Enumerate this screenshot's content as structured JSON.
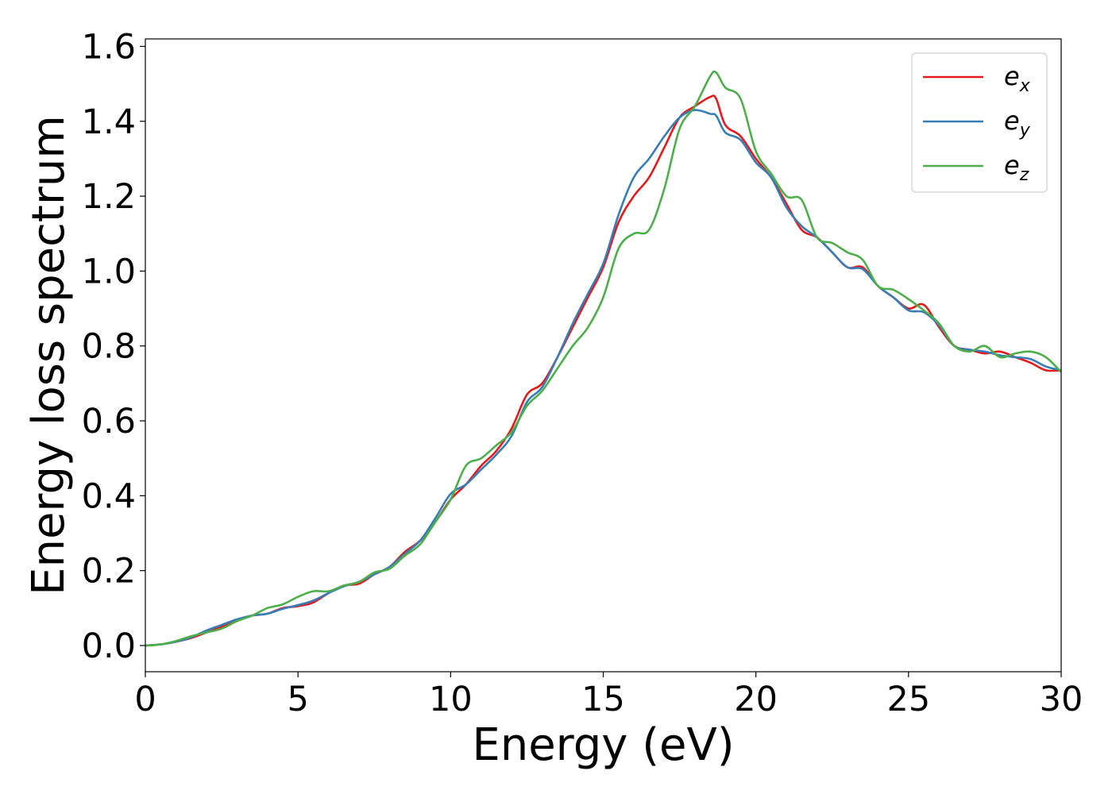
{
  "chart_data": {
    "type": "line",
    "title": "",
    "xlabel": "Energy (eV)",
    "ylabel": "Energy loss spectrum",
    "xlim": [
      0,
      30
    ],
    "ylim": [
      -0.07,
      1.62
    ],
    "xticks": [
      0,
      5,
      10,
      15,
      20,
      25,
      30
    ],
    "xtick_labels": [
      "0",
      "5",
      "10",
      "15",
      "20",
      "25",
      "30"
    ],
    "yticks": [
      0.0,
      0.2,
      0.4,
      0.6,
      0.8,
      1.0,
      1.2,
      1.4,
      1.6
    ],
    "ytick_labels": [
      "0.0",
      "0.2",
      "0.4",
      "0.6",
      "0.8",
      "1.0",
      "1.2",
      "1.4",
      "1.6"
    ],
    "grid": false,
    "legend_position": "top-right",
    "series": [
      {
        "name": "e",
        "sub": "x",
        "color": "#e41a1c",
        "x": [
          0,
          0.5,
          1,
          1.5,
          2,
          2.5,
          3,
          3.5,
          4,
          4.5,
          5,
          5.5,
          6,
          6.5,
          7,
          7.5,
          8,
          8.5,
          9,
          9.5,
          10,
          10.5,
          11,
          11.5,
          12,
          12.5,
          13,
          13.5,
          14,
          14.5,
          15,
          15.5,
          16,
          16.5,
          17,
          17.5,
          18,
          18.5,
          18.7,
          19,
          19.5,
          20,
          20.5,
          21,
          21.5,
          22,
          22.5,
          23,
          23.5,
          24,
          24.5,
          25,
          25.5,
          26,
          26.5,
          27,
          27.5,
          28,
          28.5,
          29,
          29.5,
          30
        ],
        "y": [
          0.0,
          0.003,
          0.01,
          0.02,
          0.035,
          0.05,
          0.068,
          0.08,
          0.085,
          0.1,
          0.105,
          0.115,
          0.14,
          0.16,
          0.165,
          0.19,
          0.21,
          0.25,
          0.28,
          0.33,
          0.39,
          0.43,
          0.48,
          0.52,
          0.58,
          0.67,
          0.7,
          0.77,
          0.85,
          0.93,
          1.01,
          1.13,
          1.2,
          1.25,
          1.33,
          1.41,
          1.44,
          1.465,
          1.46,
          1.39,
          1.36,
          1.3,
          1.25,
          1.18,
          1.11,
          1.09,
          1.05,
          1.01,
          1.01,
          0.96,
          0.93,
          0.9,
          0.91,
          0.85,
          0.8,
          0.79,
          0.78,
          0.785,
          0.77,
          0.755,
          0.735,
          0.735
        ]
      },
      {
        "name": "e",
        "sub": "y",
        "color": "#377eb8",
        "x": [
          0,
          0.5,
          1,
          1.5,
          2,
          2.5,
          3,
          3.5,
          4,
          4.5,
          5,
          5.5,
          6,
          6.5,
          7,
          7.5,
          8,
          8.5,
          9,
          9.5,
          10,
          10.5,
          11,
          11.5,
          12,
          12.5,
          13,
          13.5,
          14,
          14.5,
          15,
          15.5,
          16,
          16.5,
          17,
          17.5,
          18,
          18.5,
          18.7,
          19,
          19.5,
          20,
          20.5,
          21,
          21.5,
          22,
          22.5,
          23,
          23.5,
          24,
          24.5,
          25,
          25.5,
          26,
          26.5,
          27,
          27.5,
          28,
          28.5,
          29,
          29.5,
          30
        ],
        "y": [
          0.0,
          0.003,
          0.01,
          0.022,
          0.04,
          0.055,
          0.07,
          0.08,
          0.085,
          0.098,
          0.108,
          0.12,
          0.14,
          0.158,
          0.17,
          0.19,
          0.21,
          0.245,
          0.28,
          0.34,
          0.405,
          0.43,
          0.47,
          0.51,
          0.56,
          0.65,
          0.69,
          0.77,
          0.86,
          0.94,
          1.02,
          1.15,
          1.25,
          1.3,
          1.36,
          1.41,
          1.43,
          1.42,
          1.415,
          1.37,
          1.35,
          1.29,
          1.25,
          1.17,
          1.12,
          1.09,
          1.05,
          1.01,
          1.005,
          0.96,
          0.93,
          0.895,
          0.89,
          0.855,
          0.8,
          0.79,
          0.785,
          0.775,
          0.77,
          0.765,
          0.745,
          0.735
        ]
      },
      {
        "name": "e",
        "sub": "z",
        "color": "#4daf4a",
        "x": [
          0,
          0.5,
          1,
          1.5,
          2,
          2.5,
          3,
          3.5,
          4,
          4.5,
          5,
          5.5,
          6,
          6.5,
          7,
          7.5,
          8,
          8.5,
          9,
          9.5,
          10,
          10.5,
          11,
          11.5,
          12,
          12.5,
          13,
          13.5,
          14,
          14.5,
          15,
          15.5,
          16,
          16.5,
          17,
          17.5,
          18,
          18.5,
          18.7,
          19,
          19.5,
          20,
          20.5,
          21,
          21.5,
          22,
          22.5,
          23,
          23.5,
          24,
          24.5,
          25,
          25.5,
          26,
          26.5,
          27,
          27.5,
          28,
          28.5,
          29,
          29.5,
          30
        ],
        "y": [
          0.0,
          0.003,
          0.012,
          0.025,
          0.035,
          0.045,
          0.065,
          0.08,
          0.1,
          0.11,
          0.13,
          0.145,
          0.145,
          0.16,
          0.17,
          0.195,
          0.205,
          0.24,
          0.27,
          0.33,
          0.39,
          0.48,
          0.5,
          0.535,
          0.57,
          0.64,
          0.68,
          0.74,
          0.8,
          0.85,
          0.93,
          1.06,
          1.1,
          1.11,
          1.22,
          1.38,
          1.44,
          1.52,
          1.53,
          1.49,
          1.46,
          1.32,
          1.26,
          1.2,
          1.19,
          1.09,
          1.075,
          1.05,
          1.03,
          0.96,
          0.95,
          0.925,
          0.895,
          0.86,
          0.8,
          0.785,
          0.8,
          0.77,
          0.78,
          0.785,
          0.77,
          0.73
        ]
      }
    ]
  }
}
